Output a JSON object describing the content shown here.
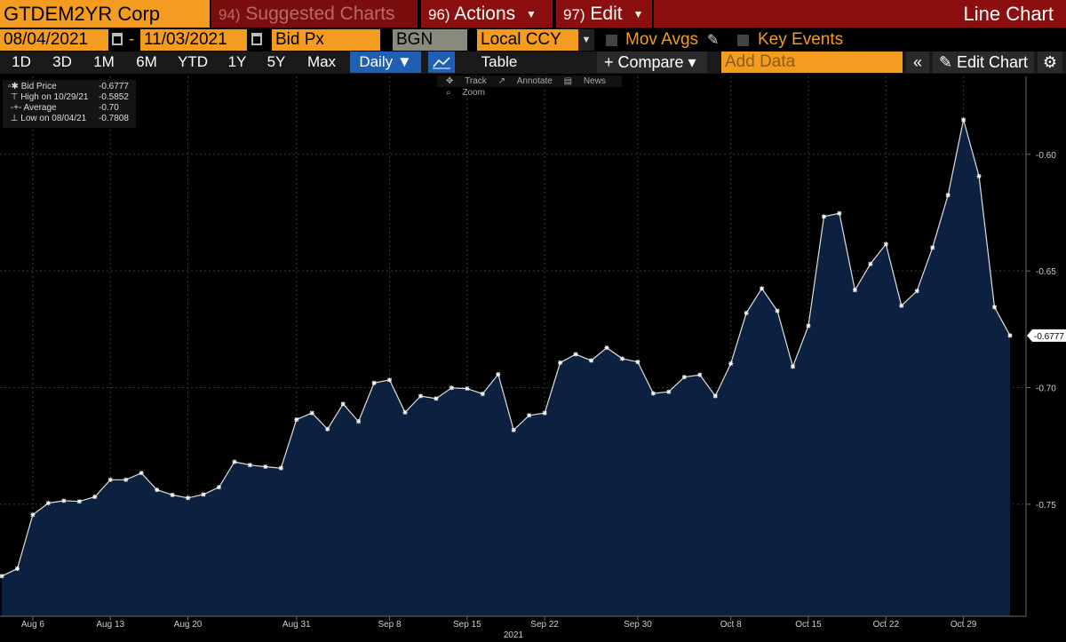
{
  "header": {
    "ticker": "GTDEM2YR Corp",
    "suggested": {
      "num": "94)",
      "label": "Suggested Charts"
    },
    "actions": {
      "num": "96)",
      "label": "Actions"
    },
    "edit": {
      "num": "97)",
      "label": "Edit"
    },
    "chart_type": "Line Chart"
  },
  "settings": {
    "start_date": "08/04/2021",
    "end_date": "11/03/2021",
    "dash": "-",
    "field": "Bid Px",
    "source": "BGN",
    "currency": "Local CCY",
    "mov_avgs": "Mov Avgs",
    "key_events": "Key Events"
  },
  "toolbar": {
    "periods": [
      "1D",
      "3D",
      "1M",
      "6M",
      "YTD",
      "1Y",
      "5Y",
      "Max"
    ],
    "frequency": "Daily ▼",
    "table": "Table",
    "compare": "+ Compare ▾",
    "add_data_placeholder": "Add Data",
    "collapse": "«",
    "edit_chart": "Edit Chart"
  },
  "chart_tools": {
    "track": "Track",
    "annotate": "Annotate",
    "news": "News",
    "zoom": "Zoom"
  },
  "legend": {
    "bid_label": "Bid Price",
    "bid_value": "-0.6777",
    "high_label": "High on 10/29/21",
    "high_value": "-0.5852",
    "avg_label": "Average",
    "avg_value": "-0.70",
    "low_label": "Low on 08/04/21",
    "low_value": "-0.7808"
  },
  "colors": {
    "accent_orange": "#f39c1f",
    "header_red": "#8b0f0f",
    "area_fill": "#0c2140",
    "line": "#e0e0e0"
  },
  "chart_data": {
    "type": "area",
    "year_label": "2021",
    "x_tick_labels": [
      "Aug 6",
      "Aug 13",
      "Aug 20",
      "Aug 31",
      "Sep 8",
      "Sep 15",
      "Sep 22",
      "Sep 30",
      "Oct 8",
      "Oct 15",
      "Oct 22",
      "Oct 29"
    ],
    "x_tick_index": [
      2,
      7,
      12,
      19,
      25,
      30,
      35,
      41,
      47,
      52,
      57,
      62
    ],
    "y_ticks": [
      -0.6,
      -0.65,
      -0.7,
      -0.75
    ],
    "y_tick_labels": [
      "-0.60",
      "-0.65",
      "-0.70",
      "-0.75"
    ],
    "ylim": [
      -0.798,
      -0.5666
    ],
    "last_value_label": "-0.6777",
    "series": [
      {
        "name": "Bid Price",
        "values": [
          -0.7808,
          -0.7776,
          -0.7545,
          -0.7495,
          -0.7485,
          -0.7488,
          -0.7468,
          -0.7395,
          -0.7395,
          -0.7366,
          -0.7438,
          -0.746,
          -0.7473,
          -0.7458,
          -0.7427,
          -0.7318,
          -0.7332,
          -0.7339,
          -0.7345,
          -0.7137,
          -0.7109,
          -0.7178,
          -0.707,
          -0.7145,
          -0.698,
          -0.6967,
          -0.7106,
          -0.7036,
          -0.7047,
          -0.7001,
          -0.7004,
          -0.7027,
          -0.6943,
          -0.7182,
          -0.7119,
          -0.7109,
          -0.6893,
          -0.6857,
          -0.6884,
          -0.6829,
          -0.6876,
          -0.689,
          -0.7025,
          -0.7018,
          -0.6955,
          -0.6945,
          -0.7036,
          -0.6897,
          -0.668,
          -0.6575,
          -0.6671,
          -0.691,
          -0.6735,
          -0.6267,
          -0.6253,
          -0.6582,
          -0.647,
          -0.6385,
          -0.6649,
          -0.6586,
          -0.64,
          -0.6175,
          -0.5852,
          -0.6094,
          -0.6655,
          -0.6777
        ]
      }
    ]
  }
}
